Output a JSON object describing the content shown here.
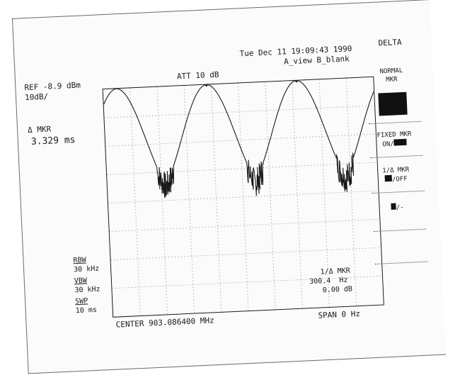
{
  "header": {
    "timestamp": "Tue Dec 11 19:09:43 1990",
    "view_state": "A_view B_blank",
    "attenuation": "ATT 10 dB"
  },
  "left_panel": {
    "ref_level": "REF -8.9 dBm",
    "scale": "10dB/",
    "delta_marker_label": "Δ MKR",
    "delta_marker_value": "3.329 ms",
    "rbw_label": "RBW",
    "rbw_value": "30 kHz",
    "vbw_label": "VBW",
    "vbw_value": "30 kHz",
    "sweep_label": "SWP",
    "sweep_value": "10 ms"
  },
  "marker_readout": {
    "line1": "1/Δ MKR",
    "line2": "300.4  Hz",
    "line3": "0.00 dB"
  },
  "footer": {
    "center_freq": "CENTER 903.086400 MHz",
    "span": "SPAN 0 Hz"
  },
  "softkeys": {
    "title": "DELTA",
    "normal_mkr_line1": "NORMAL",
    "normal_mkr_line2": "MKR",
    "fixed_mkr_line1": "FIXED MKR",
    "fixed_mkr_line2": "ON/",
    "inv_mkr_line1": "1/Δ MKR",
    "inv_mkr_line2": "/OFF",
    "extra_key": "/-"
  },
  "trace": {
    "peaks_ms": [
      0.5,
      3.829,
      7.158
    ],
    "period_ms": 3.329,
    "sweep_ms": 10,
    "peak_db": -8.9,
    "floor_db": -42,
    "scale_db_per_div": 10,
    "ref_db": -8.9,
    "marker_peaks": [
      1,
      2
    ]
  },
  "colors": {
    "ink": "#1a1a1a",
    "grid": "#9a9a9a",
    "highlight_block": "#111111"
  }
}
